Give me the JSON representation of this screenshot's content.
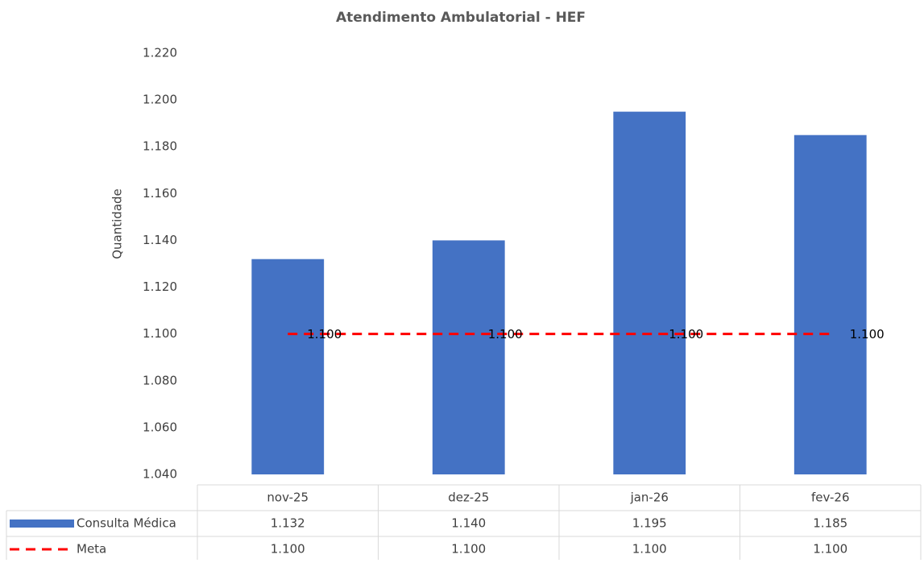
{
  "chart_data": {
    "type": "bar",
    "title": "Atendimento Ambulatorial - HEF",
    "ylabel": "Quantidade",
    "categories": [
      "nov-25",
      "dez-25",
      "jan-26",
      "fev-26"
    ],
    "series": [
      {
        "name": "Consulta Médica",
        "type": "bar",
        "color": "#4472c4",
        "values": [
          1132,
          1140,
          1195,
          1185
        ],
        "value_labels": [
          "1.132",
          "1.140",
          "1.195",
          "1.185"
        ]
      },
      {
        "name": "Meta",
        "type": "line",
        "dashed": true,
        "color": "#ff0000",
        "values": [
          1100,
          1100,
          1100,
          1100
        ],
        "value_labels": [
          "1.100",
          "1.100",
          "1.100",
          "1.100"
        ]
      }
    ],
    "ylim": [
      1040,
      1220
    ],
    "yticks": [
      {
        "value": 1040,
        "label": "1.040"
      },
      {
        "value": 1060,
        "label": "1.060"
      },
      {
        "value": 1080,
        "label": "1.080"
      },
      {
        "value": 1100,
        "label": "1.100"
      },
      {
        "value": 1120,
        "label": "1.120"
      },
      {
        "value": 1140,
        "label": "1.140"
      },
      {
        "value": 1160,
        "label": "1.160"
      },
      {
        "value": 1180,
        "label": "1.180"
      },
      {
        "value": 1200,
        "label": "1.200"
      },
      {
        "value": 1220,
        "label": "1.220"
      }
    ],
    "grid": false,
    "data_table": true
  }
}
